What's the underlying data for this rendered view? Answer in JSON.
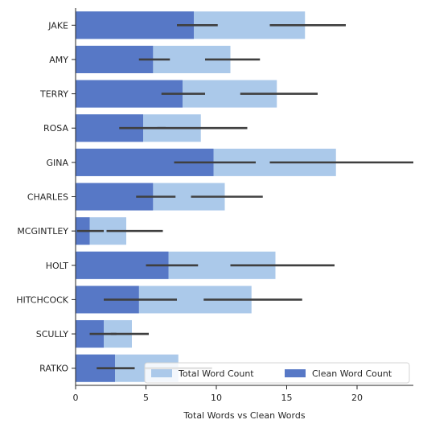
{
  "chart_data": {
    "type": "bar",
    "orientation": "horizontal",
    "categories": [
      "JAKE",
      "AMY",
      "TERRY",
      "ROSA",
      "GINA",
      "CHARLES",
      "MCGINTLEY",
      "HOLT",
      "HITCHCOCK",
      "SCULLY",
      "RATKO"
    ],
    "series": [
      {
        "name": "Total Word Count",
        "color": "#abc9ea",
        "values": [
          16.3,
          11.0,
          14.3,
          8.9,
          18.5,
          10.6,
          3.6,
          14.2,
          12.5,
          4.0,
          7.3
        ],
        "ci": [
          [
            13.8,
            19.2
          ],
          [
            9.2,
            13.1
          ],
          [
            11.7,
            17.2
          ],
          [
            5.8,
            12.2
          ],
          [
            13.8,
            24.0
          ],
          [
            8.2,
            13.3
          ],
          [
            2.2,
            6.2
          ],
          [
            11.0,
            18.4
          ],
          [
            9.1,
            16.1
          ],
          [
            2.5,
            5.2
          ],
          [
            4.9,
            9.7
          ]
        ]
      },
      {
        "name": "Clean Word Count",
        "color": "#5778c6",
        "values": [
          8.4,
          5.5,
          7.6,
          4.8,
          9.8,
          5.5,
          1.0,
          6.6,
          4.5,
          2.0,
          2.8
        ],
        "ci": [
          [
            7.2,
            10.1
          ],
          [
            4.5,
            6.7
          ],
          [
            6.1,
            9.2
          ],
          [
            3.1,
            6.4
          ],
          [
            7.0,
            12.8
          ],
          [
            4.3,
            7.1
          ],
          [
            0.1,
            2.0
          ],
          [
            5.0,
            8.7
          ],
          [
            2.0,
            7.2
          ],
          [
            1.0,
            2.9
          ],
          [
            1.5,
            4.2
          ]
        ]
      }
    ],
    "xlabel": "Total Words vs Clean Words",
    "ylabel": "",
    "xlim": [
      0,
      24
    ],
    "xticks": [
      0,
      5,
      10,
      15,
      20
    ],
    "legend": {
      "position": "lower-right",
      "columns": 2
    },
    "grid": false,
    "errorbar_color": "#3f3f3f"
  }
}
